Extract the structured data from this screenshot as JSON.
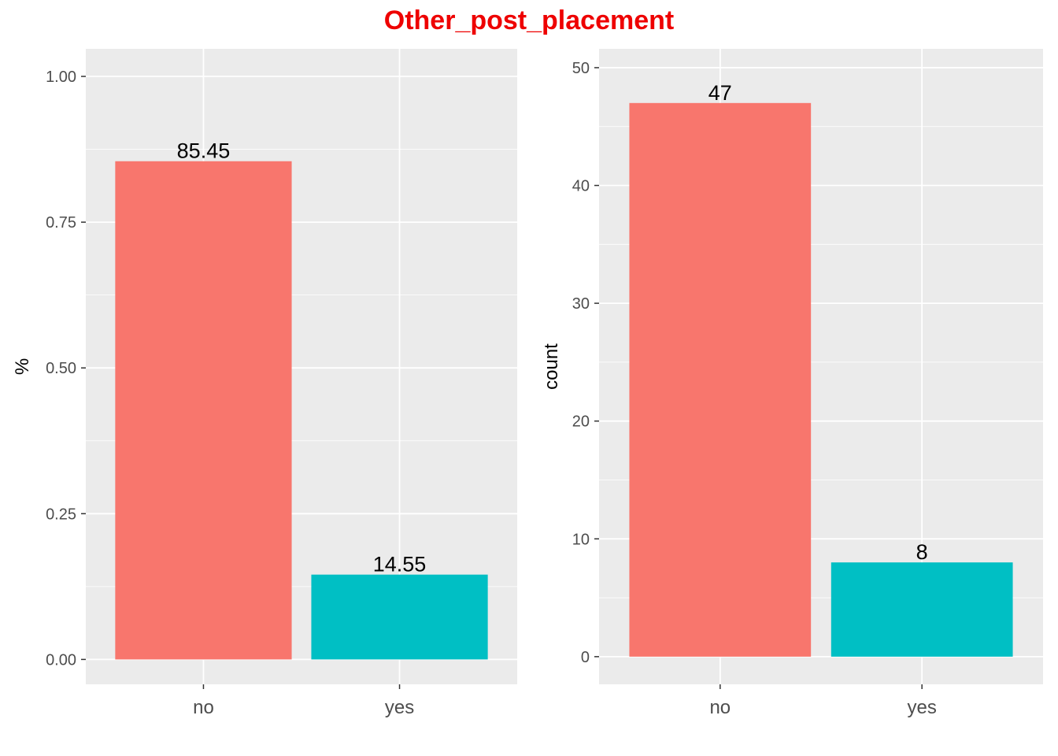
{
  "title": "Other_post_placement",
  "colors": {
    "no": "#F8766D",
    "yes": "#00BFC4",
    "panel": "#EBEBEB",
    "grid": "#FFFFFF",
    "title": "#EE0000"
  },
  "chart_data": [
    {
      "type": "bar",
      "categories": [
        "no",
        "yes"
      ],
      "values": [
        0.8545,
        0.1455
      ],
      "labels": [
        "85.45",
        "14.55"
      ],
      "xlabel": "",
      "ylabel": "%",
      "ylim": [
        -0.0427,
        1.0473
      ],
      "yticks": [
        0.0,
        0.25,
        0.5,
        0.75,
        1.0
      ],
      "ytick_labels": [
        "0.00",
        "0.25",
        "0.50",
        "0.75",
        "1.00"
      ],
      "grid": true,
      "legend": "none"
    },
    {
      "type": "bar",
      "categories": [
        "no",
        "yes"
      ],
      "values": [
        47,
        8
      ],
      "labels": [
        "47",
        "8"
      ],
      "xlabel": "",
      "ylabel": "count",
      "ylim": [
        -2.35,
        51.6
      ],
      "yticks": [
        0,
        10,
        20,
        30,
        40,
        50
      ],
      "ytick_labels": [
        "0",
        "10",
        "20",
        "30",
        "40",
        "50"
      ],
      "grid": true,
      "legend": "none"
    }
  ]
}
